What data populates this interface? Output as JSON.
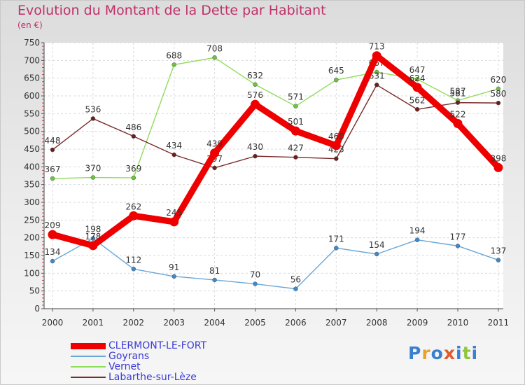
{
  "header": {
    "title": "Evolution du Montant de la Dette par Habitant",
    "subtitle": "(en €)"
  },
  "logo": {
    "text": "Proxiti",
    "letter_colors": [
      "#3a7fd0",
      "#e8a22c",
      "#3a7fd0",
      "#e05a2a",
      "#3a7fd0",
      "#8fc63e",
      "#3a7fd0"
    ]
  },
  "chart_data": {
    "type": "line",
    "x": [
      "2000",
      "2001",
      "2002",
      "2003",
      "2004",
      "2005",
      "2006",
      "2007",
      "2008",
      "2009",
      "2010",
      "2011"
    ],
    "ylim": [
      0,
      750
    ],
    "yticks": [
      0,
      50,
      100,
      150,
      200,
      250,
      300,
      350,
      400,
      450,
      500,
      550,
      600,
      650,
      700,
      750
    ],
    "grid": true,
    "legend_position": "bottom-left",
    "series": [
      {
        "name": "CLERMONT-LE-FORT",
        "values": [
          209,
          178,
          262,
          245,
          439,
          576,
          501,
          460,
          713,
          624,
          522,
          398
        ],
        "color": "#ee0000",
        "marker_color": "#ee0000",
        "bold": true
      },
      {
        "name": "Goyrans",
        "values": [
          134,
          198,
          112,
          91,
          81,
          70,
          56,
          171,
          154,
          194,
          177,
          137
        ],
        "color": "#6aa6d6",
        "marker_color": "#3f88c9"
      },
      {
        "name": "Vernet",
        "values": [
          367,
          370,
          369,
          688,
          708,
          632,
          571,
          645,
          667,
          647,
          587,
          620
        ],
        "color": "#8fdc5a",
        "marker_color": "#6cc33c"
      },
      {
        "name": "Labarthe-sur-Lèze",
        "values": [
          448,
          536,
          486,
          434,
          397,
          430,
          427,
          423,
          631,
          562,
          581,
          580
        ],
        "color": "#7a2a2a",
        "marker_color": "#6a1f1f"
      }
    ]
  }
}
